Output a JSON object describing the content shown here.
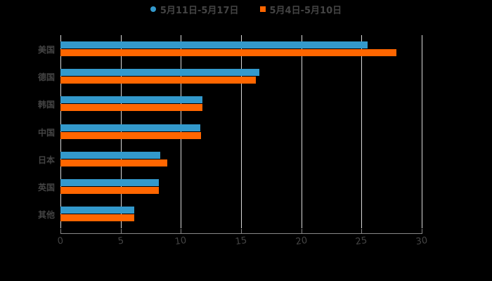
{
  "legend": [
    {
      "label": "5月11日-5月17日",
      "color": "#3399cc",
      "shape": "circle"
    },
    {
      "label": "5月4日-5月10日",
      "color": "#ff6600",
      "shape": "square"
    }
  ],
  "chart_data": {
    "type": "bar",
    "orientation": "horizontal",
    "title": "",
    "xlabel": "",
    "ylabel": "",
    "categories": [
      "美国",
      "德国",
      "韩国",
      "中国",
      "日本",
      "英国",
      "其他"
    ],
    "series": [
      {
        "name": "5月11日-5月17日",
        "color": "#3399cc",
        "values": [
          25.5,
          16.5,
          11.8,
          11.6,
          8.3,
          8.2,
          6.1
        ]
      },
      {
        "name": "5月4日-5月10日",
        "color": "#ff6600",
        "values": [
          27.9,
          16.2,
          11.8,
          11.7,
          8.9,
          8.2,
          6.1
        ]
      }
    ],
    "xlim": [
      0,
      30
    ],
    "xticks": [
      "0",
      "5",
      "10",
      "15",
      "20",
      "25",
      "30"
    ],
    "grid": true,
    "legend_position": "top"
  }
}
